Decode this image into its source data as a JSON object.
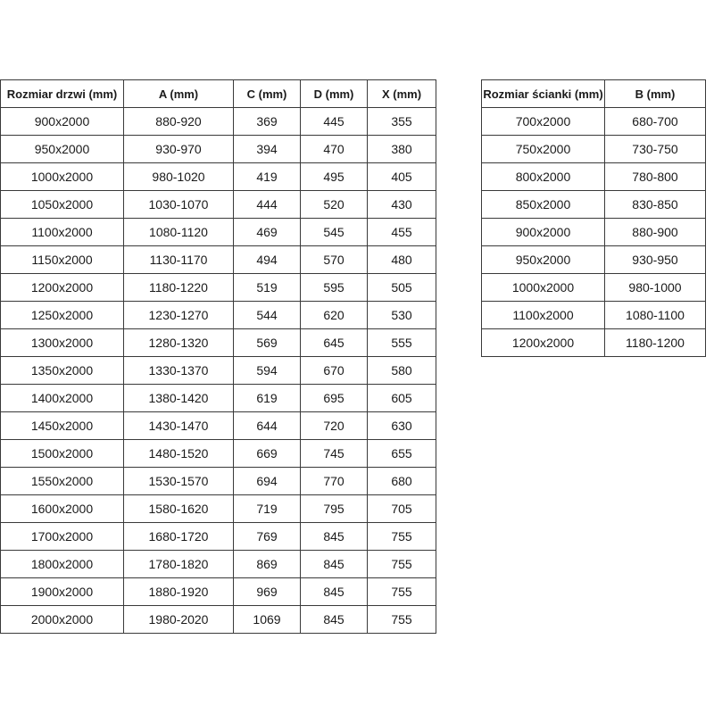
{
  "doors_table": {
    "headers": [
      "Rozmiar drzwi (mm)",
      "A (mm)",
      "C (mm)",
      "D (mm)",
      "X (mm)"
    ],
    "rows": [
      [
        "900x2000",
        "880-920",
        "369",
        "445",
        "355"
      ],
      [
        "950x2000",
        "930-970",
        "394",
        "470",
        "380"
      ],
      [
        "1000x2000",
        "980-1020",
        "419",
        "495",
        "405"
      ],
      [
        "1050x2000",
        "1030-1070",
        "444",
        "520",
        "430"
      ],
      [
        "1100x2000",
        "1080-1120",
        "469",
        "545",
        "455"
      ],
      [
        "1150x2000",
        "1130-1170",
        "494",
        "570",
        "480"
      ],
      [
        "1200x2000",
        "1180-1220",
        "519",
        "595",
        "505"
      ],
      [
        "1250x2000",
        "1230-1270",
        "544",
        "620",
        "530"
      ],
      [
        "1300x2000",
        "1280-1320",
        "569",
        "645",
        "555"
      ],
      [
        "1350x2000",
        "1330-1370",
        "594",
        "670",
        "580"
      ],
      [
        "1400x2000",
        "1380-1420",
        "619",
        "695",
        "605"
      ],
      [
        "1450x2000",
        "1430-1470",
        "644",
        "720",
        "630"
      ],
      [
        "1500x2000",
        "1480-1520",
        "669",
        "745",
        "655"
      ],
      [
        "1550x2000",
        "1530-1570",
        "694",
        "770",
        "680"
      ],
      [
        "1600x2000",
        "1580-1620",
        "719",
        "795",
        "705"
      ],
      [
        "1700x2000",
        "1680-1720",
        "769",
        "845",
        "755"
      ],
      [
        "1800x2000",
        "1780-1820",
        "869",
        "845",
        "755"
      ],
      [
        "1900x2000",
        "1880-1920",
        "969",
        "845",
        "755"
      ],
      [
        "2000x2000",
        "1980-2020",
        "1069",
        "845",
        "755"
      ]
    ]
  },
  "wall_table": {
    "headers": [
      "Rozmiar ścianki (mm)",
      "B (mm)"
    ],
    "rows": [
      [
        "700x2000",
        "680-700"
      ],
      [
        "750x2000",
        "730-750"
      ],
      [
        "800x2000",
        "780-800"
      ],
      [
        "850x2000",
        "830-850"
      ],
      [
        "900x2000",
        "880-900"
      ],
      [
        "950x2000",
        "930-950"
      ],
      [
        "1000x2000",
        "980-1000"
      ],
      [
        "1100x2000",
        "1080-1100"
      ],
      [
        "1200x2000",
        "1180-1200"
      ]
    ]
  }
}
